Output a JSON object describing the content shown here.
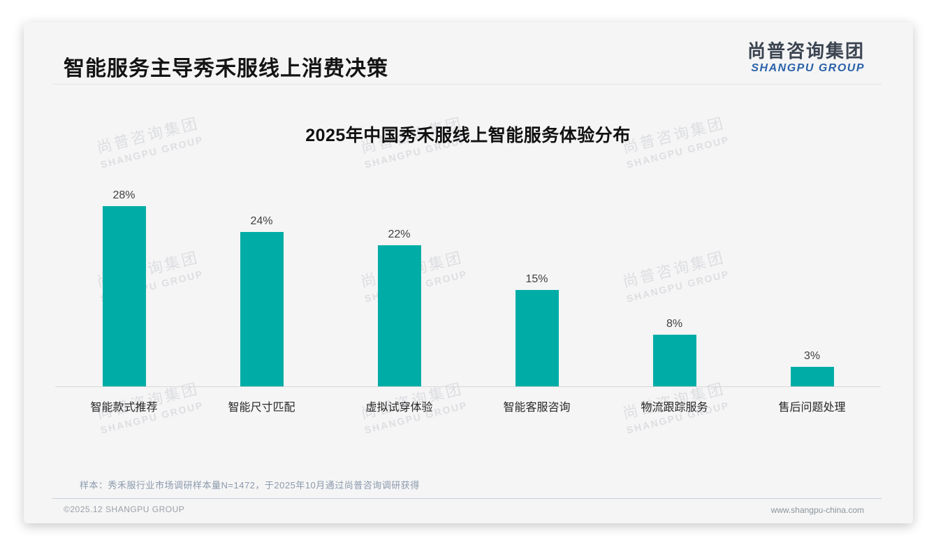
{
  "page": {
    "title": "智能服务主导秀禾服线上消费决策"
  },
  "logo": {
    "cn": "尚普咨询集团",
    "en": "SHANGPU GROUP"
  },
  "watermark": {
    "cn": "尚普咨询集团",
    "en": "SHANGPU GROUP"
  },
  "chart_data": {
    "type": "bar",
    "title": "2025年中国秀禾服线上智能服务体验分布",
    "categories": [
      "智能款式推荐",
      "智能尺寸匹配",
      "虚拟试穿体验",
      "智能客服咨询",
      "物流跟踪服务",
      "售后问题处理"
    ],
    "values": [
      28,
      24,
      22,
      15,
      8,
      3
    ],
    "value_labels": [
      "28%",
      "24%",
      "22%",
      "15%",
      "8%",
      "3%"
    ],
    "unit": "%",
    "bar_color": "#00ada6",
    "xlabel": "",
    "ylabel": "",
    "ylim": [
      0,
      30
    ],
    "grid": false,
    "legend": false
  },
  "footnote": {
    "sample_note": "样本：秀禾服行业市场调研样本量N=1472，于2025年10月通过尚普咨询调研获得"
  },
  "footer": {
    "left": "©2025.12 SHANGPU GROUP",
    "right": "www.shangpu-china.com"
  }
}
